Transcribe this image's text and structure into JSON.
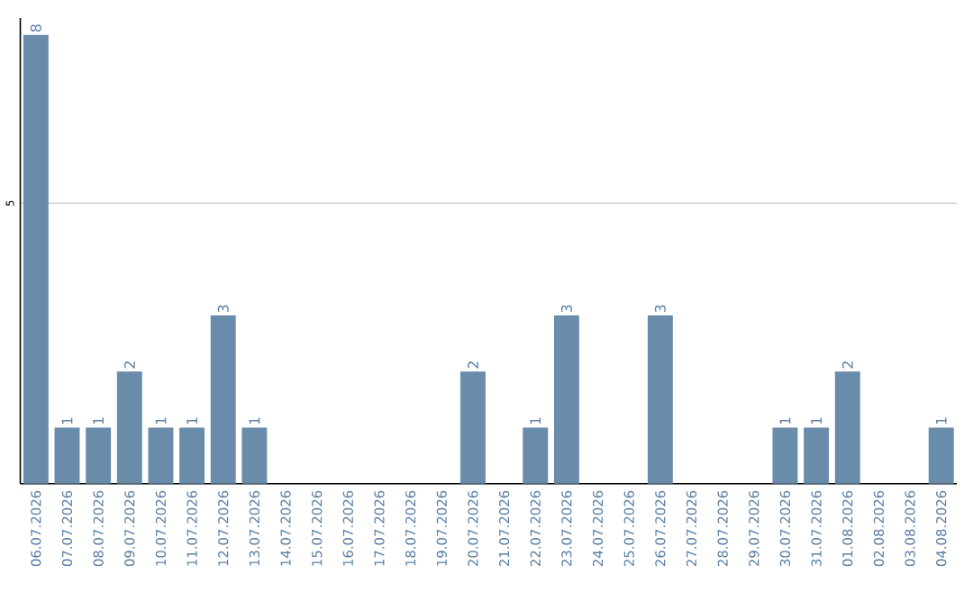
{
  "chart_data": {
    "type": "bar",
    "categories": [
      "06.07.2026",
      "07.07.2026",
      "08.07.2026",
      "09.07.2026",
      "10.07.2026",
      "11.07.2026",
      "12.07.2026",
      "13.07.2026",
      "14.07.2026",
      "15.07.2026",
      "16.07.2026",
      "17.07.2026",
      "18.07.2026",
      "19.07.2026",
      "20.07.2026",
      "21.07.2026",
      "22.07.2026",
      "23.07.2026",
      "24.07.2026",
      "25.07.2026",
      "26.07.2026",
      "27.07.2026",
      "28.07.2026",
      "29.07.2026",
      "30.07.2026",
      "31.07.2026",
      "01.08.2026",
      "02.08.2026",
      "03.08.2026",
      "04.08.2026"
    ],
    "values": [
      8,
      1,
      1,
      2,
      1,
      1,
      3,
      1,
      0,
      0,
      0,
      0,
      0,
      0,
      2,
      0,
      1,
      3,
      0,
      0,
      3,
      0,
      0,
      0,
      1,
      1,
      2,
      0,
      0,
      1
    ],
    "value_labels": [
      "8",
      "1",
      "1",
      "2",
      "1",
      "1",
      "3",
      "1",
      null,
      null,
      null,
      null,
      null,
      null,
      "2",
      null,
      "1",
      "3",
      null,
      null,
      "3",
      null,
      null,
      null,
      "1",
      "1",
      "2",
      null,
      null,
      "1"
    ],
    "color": "#6a8cab",
    "ylim": [
      0,
      8.3
    ],
    "yticks": [
      5
    ],
    "grid": "y"
  }
}
